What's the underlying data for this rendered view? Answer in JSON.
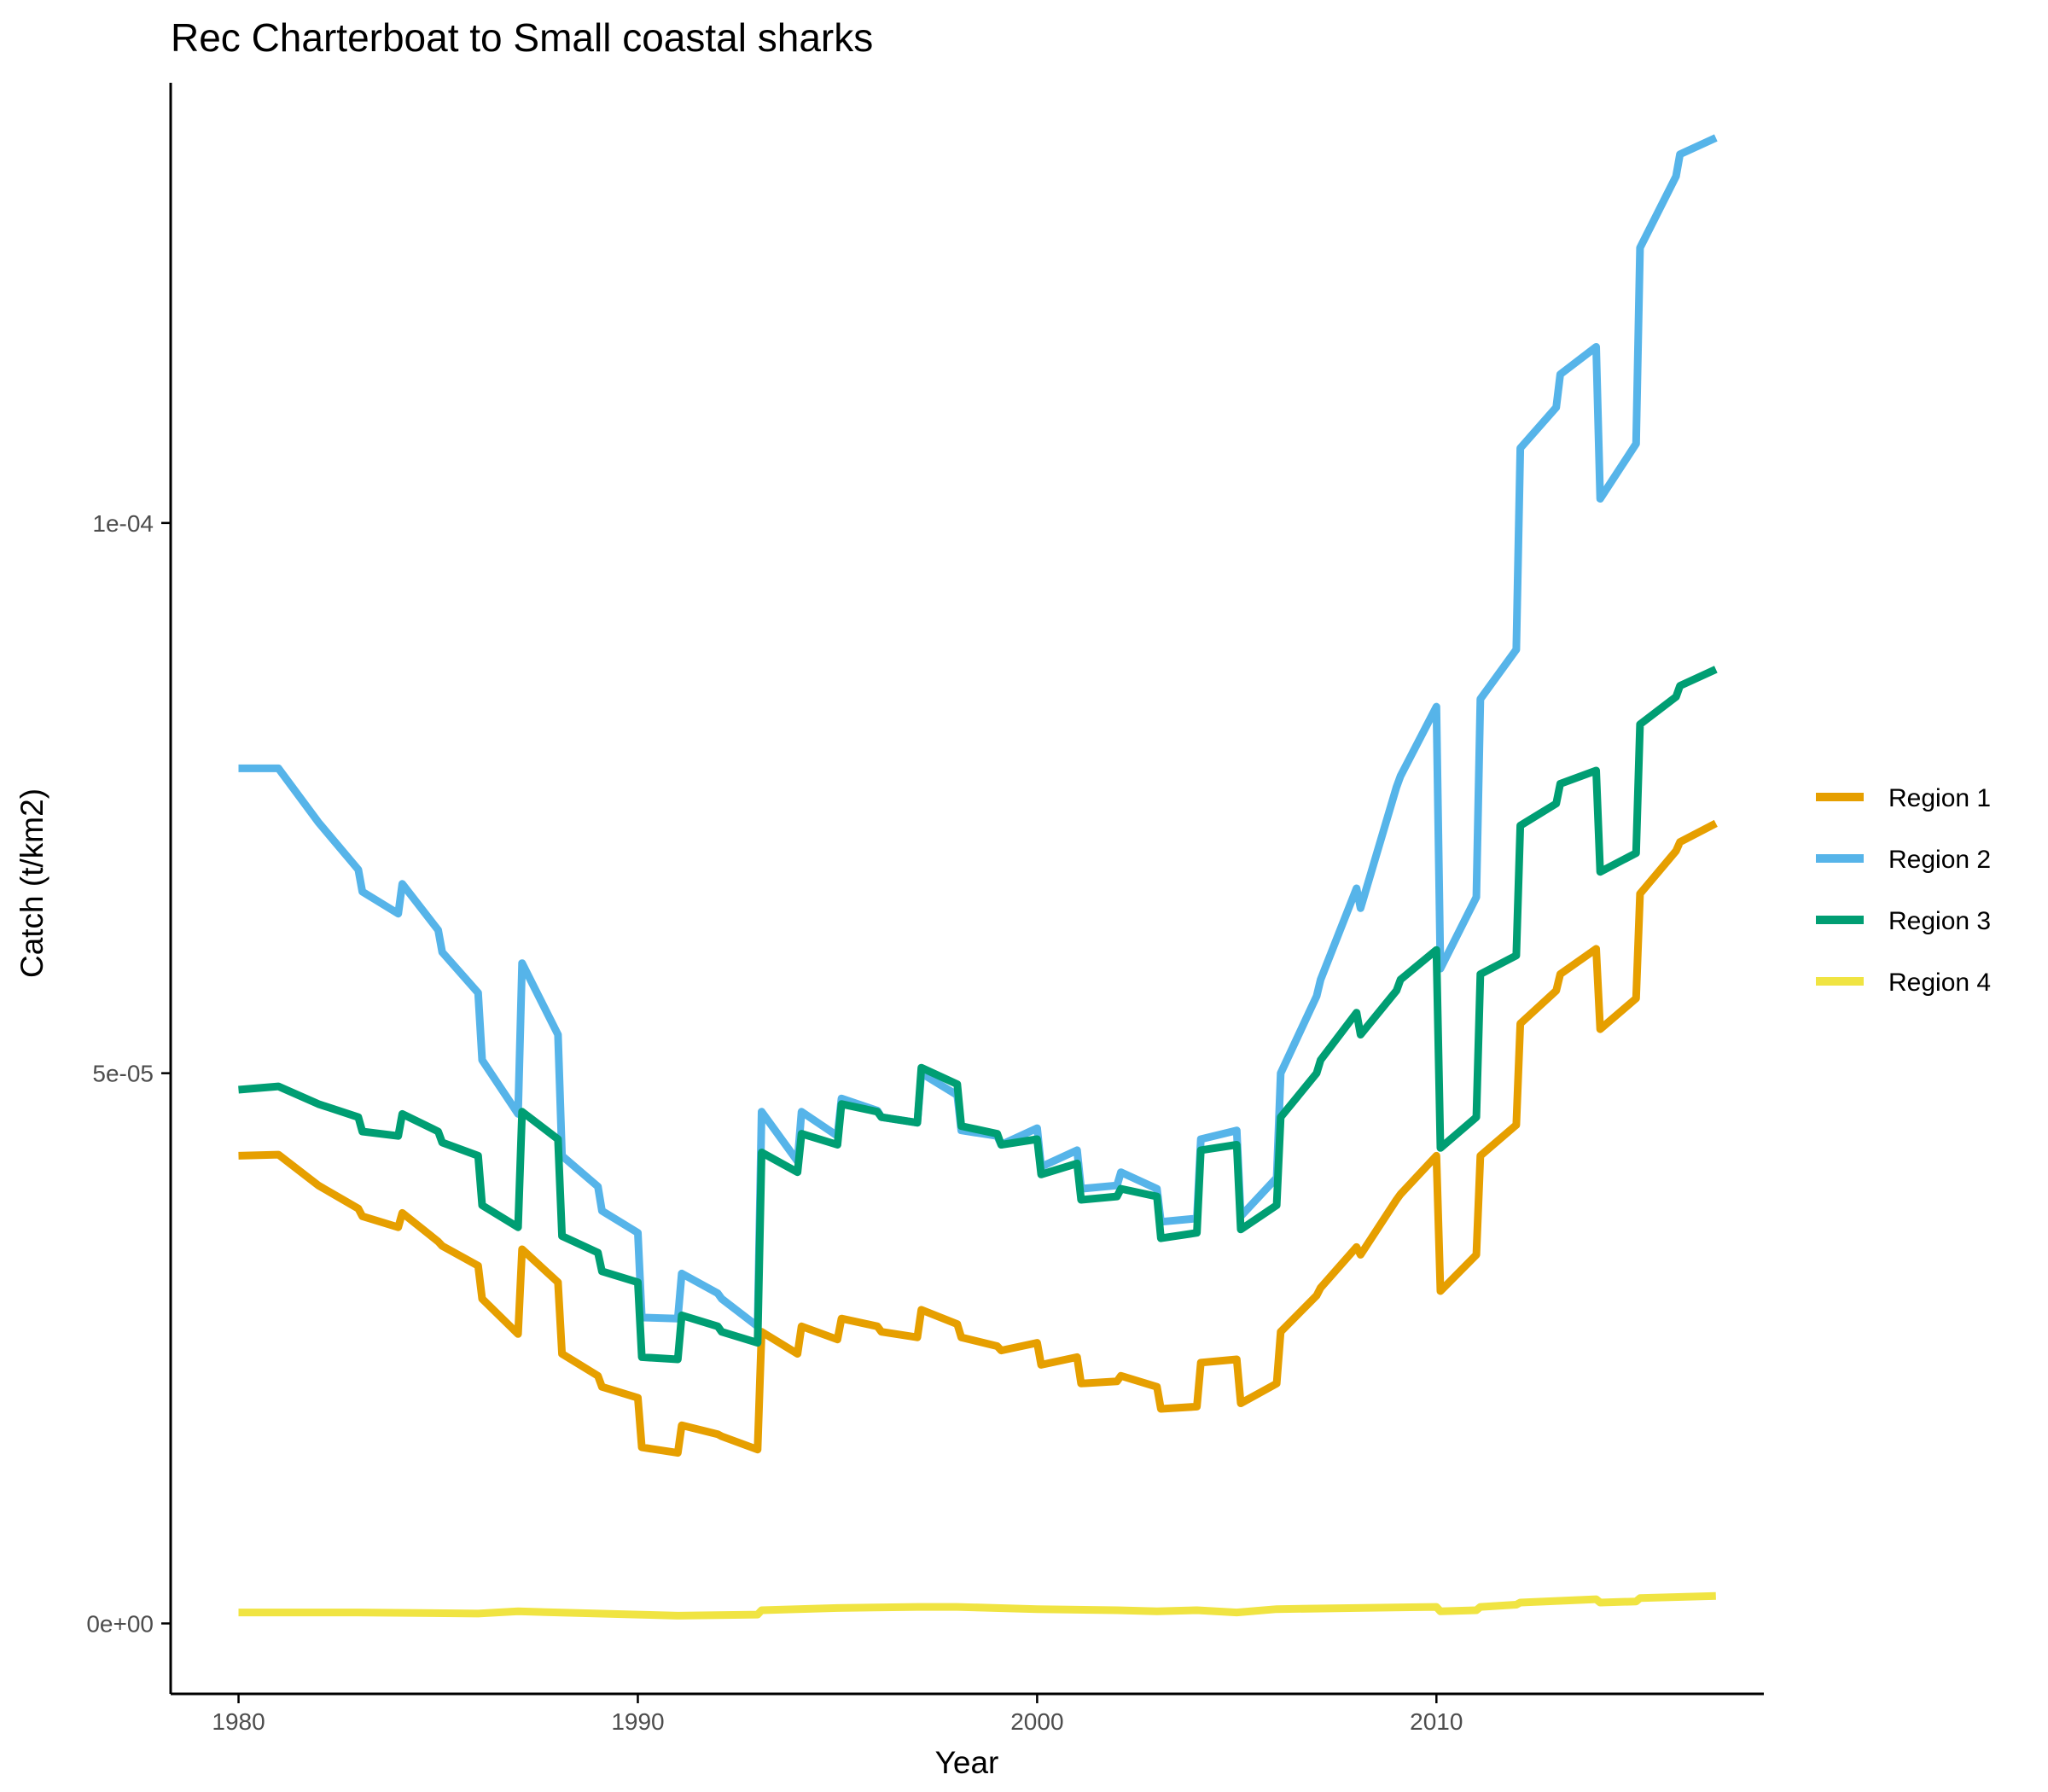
{
  "chart_data": {
    "type": "line",
    "title": "Rec Charterboat to Small coastal sharks",
    "xlabel": "Year",
    "ylabel": "Catch (t/km2)",
    "xlim": [
      1978.3,
      2018.2
    ],
    "ylim": [
      -6.4e-06,
      0.00014
    ],
    "x_ticks": [
      {
        "value": 1980,
        "label": "1980"
      },
      {
        "value": 1990,
        "label": "1990"
      },
      {
        "value": 2000,
        "label": "2000"
      },
      {
        "value": 2010,
        "label": "2010"
      }
    ],
    "y_ticks": [
      {
        "value": 0,
        "label": "0e+00"
      },
      {
        "value": 5e-05,
        "label": "5e-05"
      },
      {
        "value": 0.0001,
        "label": "1e-04"
      }
    ],
    "grid": false,
    "legend": "right",
    "series": [
      {
        "name": "Region 1",
        "color": "#E69F00",
        "points": [
          [
            1980,
            4.25e-05
          ],
          [
            1981,
            4.26e-05
          ],
          [
            1982,
            3.98e-05
          ],
          [
            1983,
            3.77e-05
          ],
          [
            1983.1,
            3.7e-05
          ],
          [
            1984,
            3.6e-05
          ],
          [
            1984.1,
            3.73e-05
          ],
          [
            1985,
            3.47e-05
          ],
          [
            1985.1,
            3.43e-05
          ],
          [
            1986,
            3.25e-05
          ],
          [
            1986.1,
            2.95e-05
          ],
          [
            1987,
            2.63e-05
          ],
          [
            1987.1,
            3.4e-05
          ],
          [
            1988,
            3.1e-05
          ],
          [
            1988.1,
            2.45e-05
          ],
          [
            1989,
            2.25e-05
          ],
          [
            1989.1,
            2.15e-05
          ],
          [
            1990,
            2.05e-05
          ],
          [
            1990.1,
            1.6e-05
          ],
          [
            1991,
            1.55e-05
          ],
          [
            1991.1,
            1.8e-05
          ],
          [
            1992,
            1.72e-05
          ],
          [
            1992.1,
            1.7e-05
          ],
          [
            1993,
            1.58e-05
          ],
          [
            1993.1,
            2.65e-05
          ],
          [
            1994,
            2.45e-05
          ],
          [
            1994.1,
            2.7e-05
          ],
          [
            1995,
            2.58e-05
          ],
          [
            1995.1,
            2.77e-05
          ],
          [
            1996,
            2.7e-05
          ],
          [
            1996.1,
            2.65e-05
          ],
          [
            1997,
            2.6e-05
          ],
          [
            1997.1,
            2.85e-05
          ],
          [
            1998,
            2.72e-05
          ],
          [
            1998.1,
            2.6e-05
          ],
          [
            1999,
            2.52e-05
          ],
          [
            1999.1,
            2.48e-05
          ],
          [
            2000,
            2.55e-05
          ],
          [
            2000.1,
            2.35e-05
          ],
          [
            2001,
            2.42e-05
          ],
          [
            2001.1,
            2.18e-05
          ],
          [
            2002,
            2.2e-05
          ],
          [
            2002.1,
            2.25e-05
          ],
          [
            2003,
            2.15e-05
          ],
          [
            2003.1,
            1.95e-05
          ],
          [
            2004,
            1.97e-05
          ],
          [
            2004.1,
            2.37e-05
          ],
          [
            2005,
            2.4e-05
          ],
          [
            2005.1,
            2e-05
          ],
          [
            2006,
            2.18e-05
          ],
          [
            2006.1,
            2.65e-05
          ],
          [
            2007,
            2.98e-05
          ],
          [
            2007.1,
            3.05e-05
          ],
          [
            2008,
            3.42e-05
          ],
          [
            2008.1,
            3.35e-05
          ],
          [
            2009,
            3.85e-05
          ],
          [
            2009.1,
            3.9e-05
          ],
          [
            2010,
            4.25e-05
          ],
          [
            2010.1,
            3.02e-05
          ],
          [
            2011,
            3.35e-05
          ],
          [
            2011.1,
            4.25e-05
          ],
          [
            2012,
            4.53e-05
          ],
          [
            2012.1,
            5.45e-05
          ],
          [
            2013,
            5.75e-05
          ],
          [
            2013.1,
            5.9e-05
          ],
          [
            2014,
            6.13e-05
          ],
          [
            2014.1,
            5.4e-05
          ],
          [
            2015,
            5.68e-05
          ],
          [
            2015.1,
            6.63e-05
          ],
          [
            2016,
            7.02e-05
          ],
          [
            2016.1,
            7.1e-05
          ],
          [
            2017,
            7.27e-05
          ]
        ]
      },
      {
        "name": "Region 2",
        "color": "#56B4E9",
        "points": [
          [
            1980,
            7.77e-05
          ],
          [
            1981,
            7.77e-05
          ],
          [
            1982,
            7.28e-05
          ],
          [
            1983,
            6.85e-05
          ],
          [
            1983.1,
            6.65e-05
          ],
          [
            1984,
            6.45e-05
          ],
          [
            1984.1,
            6.72e-05
          ],
          [
            1985,
            6.3e-05
          ],
          [
            1985.1,
            6.1e-05
          ],
          [
            1986,
            5.73e-05
          ],
          [
            1986.1,
            5.12e-05
          ],
          [
            1987,
            4.63e-05
          ],
          [
            1987.1,
            6e-05
          ],
          [
            1988,
            5.35e-05
          ],
          [
            1988.1,
            4.25e-05
          ],
          [
            1989,
            3.97e-05
          ],
          [
            1989.1,
            3.75e-05
          ],
          [
            1990,
            3.55e-05
          ],
          [
            1990.1,
            2.78e-05
          ],
          [
            1991,
            2.77e-05
          ],
          [
            1991.1,
            3.18e-05
          ],
          [
            1992,
            3e-05
          ],
          [
            1992.1,
            2.95e-05
          ],
          [
            1993,
            2.7e-05
          ],
          [
            1993.1,
            4.65e-05
          ],
          [
            1994,
            4.2e-05
          ],
          [
            1994.1,
            4.65e-05
          ],
          [
            1995,
            4.43e-05
          ],
          [
            1995.1,
            4.77e-05
          ],
          [
            1996,
            4.66e-05
          ],
          [
            1996.1,
            4.6e-05
          ],
          [
            1997,
            4.55e-05
          ],
          [
            1997.1,
            5e-05
          ],
          [
            1998,
            4.8e-05
          ],
          [
            1998.1,
            4.48e-05
          ],
          [
            1999,
            4.43e-05
          ],
          [
            1999.1,
            4.35e-05
          ],
          [
            2000,
            4.5e-05
          ],
          [
            2000.1,
            4.15e-05
          ],
          [
            2001,
            4.3e-05
          ],
          [
            2001.1,
            3.95e-05
          ],
          [
            2002,
            3.98e-05
          ],
          [
            2002.1,
            4.1e-05
          ],
          [
            2003,
            3.95e-05
          ],
          [
            2003.1,
            3.65e-05
          ],
          [
            2004,
            3.68e-05
          ],
          [
            2004.1,
            4.4e-05
          ],
          [
            2005,
            4.48e-05
          ],
          [
            2005.1,
            3.7e-05
          ],
          [
            2006,
            4.05e-05
          ],
          [
            2006.1,
            5e-05
          ],
          [
            2007,
            5.7e-05
          ],
          [
            2007.1,
            5.85e-05
          ],
          [
            2008,
            6.68e-05
          ],
          [
            2008.1,
            6.5e-05
          ],
          [
            2009,
            7.6e-05
          ],
          [
            2009.1,
            7.7e-05
          ],
          [
            2010,
            8.33e-05
          ],
          [
            2010.1,
            5.95e-05
          ],
          [
            2011,
            6.6e-05
          ],
          [
            2011.1,
            8.4e-05
          ],
          [
            2012,
            8.85e-05
          ],
          [
            2012.1,
            0.0001068
          ],
          [
            2013,
            0.0001105
          ],
          [
            2013.1,
            0.0001135
          ],
          [
            2014,
            0.000116
          ],
          [
            2014.1,
            0.0001022
          ],
          [
            2015,
            0.0001072
          ],
          [
            2015.1,
            0.000125
          ],
          [
            2016,
            0.0001315
          ],
          [
            2016.1,
            0.0001335
          ],
          [
            2017,
            0.000135
          ]
        ]
      },
      {
        "name": "Region 3",
        "color": "#009E73",
        "points": [
          [
            1980,
            4.85e-05
          ],
          [
            1981,
            4.88e-05
          ],
          [
            1982,
            4.72e-05
          ],
          [
            1983,
            4.6e-05
          ],
          [
            1983.1,
            4.47e-05
          ],
          [
            1984,
            4.43e-05
          ],
          [
            1984.1,
            4.63e-05
          ],
          [
            1985,
            4.47e-05
          ],
          [
            1985.1,
            4.37e-05
          ],
          [
            1986,
            4.25e-05
          ],
          [
            1986.1,
            3.8e-05
          ],
          [
            1987,
            3.6e-05
          ],
          [
            1987.1,
            4.65e-05
          ],
          [
            1988,
            4.4e-05
          ],
          [
            1988.1,
            3.52e-05
          ],
          [
            1989,
            3.37e-05
          ],
          [
            1989.1,
            3.2e-05
          ],
          [
            1990,
            3.1e-05
          ],
          [
            1990.1,
            2.42e-05
          ],
          [
            1991,
            2.4e-05
          ],
          [
            1991.1,
            2.8e-05
          ],
          [
            1992,
            2.7e-05
          ],
          [
            1992.1,
            2.65e-05
          ],
          [
            1993,
            2.55e-05
          ],
          [
            1993.1,
            4.28e-05
          ],
          [
            1994,
            4.1e-05
          ],
          [
            1994.1,
            4.45e-05
          ],
          [
            1995,
            4.35e-05
          ],
          [
            1995.1,
            4.72e-05
          ],
          [
            1996,
            4.65e-05
          ],
          [
            1996.1,
            4.6e-05
          ],
          [
            1997,
            4.55e-05
          ],
          [
            1997.1,
            5.05e-05
          ],
          [
            1998,
            4.9e-05
          ],
          [
            1998.1,
            4.52e-05
          ],
          [
            1999,
            4.45e-05
          ],
          [
            1999.1,
            4.35e-05
          ],
          [
            2000,
            4.4e-05
          ],
          [
            2000.1,
            4.08e-05
          ],
          [
            2001,
            4.18e-05
          ],
          [
            2001.1,
            3.85e-05
          ],
          [
            2002,
            3.88e-05
          ],
          [
            2002.1,
            3.95e-05
          ],
          [
            2003,
            3.88e-05
          ],
          [
            2003.1,
            3.5e-05
          ],
          [
            2004,
            3.55e-05
          ],
          [
            2004.1,
            4.3e-05
          ],
          [
            2005,
            4.35e-05
          ],
          [
            2005.1,
            3.58e-05
          ],
          [
            2006,
            3.8e-05
          ],
          [
            2006.1,
            4.6e-05
          ],
          [
            2007,
            5e-05
          ],
          [
            2007.1,
            5.12e-05
          ],
          [
            2008,
            5.55e-05
          ],
          [
            2008.1,
            5.35e-05
          ],
          [
            2009,
            5.75e-05
          ],
          [
            2009.1,
            5.85e-05
          ],
          [
            2010,
            6.12e-05
          ],
          [
            2010.1,
            4.32e-05
          ],
          [
            2011,
            4.6e-05
          ],
          [
            2011.1,
            5.9e-05
          ],
          [
            2012,
            6.07e-05
          ],
          [
            2012.1,
            7.25e-05
          ],
          [
            2013,
            7.45e-05
          ],
          [
            2013.1,
            7.63e-05
          ],
          [
            2014,
            7.75e-05
          ],
          [
            2014.1,
            6.83e-05
          ],
          [
            2015,
            7e-05
          ],
          [
            2015.1,
            8.17e-05
          ],
          [
            2016,
            8.42e-05
          ],
          [
            2016.1,
            8.52e-05
          ],
          [
            2017,
            8.67e-05
          ]
        ]
      },
      {
        "name": "Region 4",
        "color": "#F0E442",
        "points": [
          [
            1980,
            1e-06
          ],
          [
            1983,
            1e-06
          ],
          [
            1986,
            9e-07
          ],
          [
            1987,
            1.1e-06
          ],
          [
            1988,
            1e-06
          ],
          [
            1990,
            8e-07
          ],
          [
            1991,
            7e-07
          ],
          [
            1993,
            8e-07
          ],
          [
            1993.1,
            1.2e-06
          ],
          [
            1995,
            1.4e-06
          ],
          [
            1997,
            1.5e-06
          ],
          [
            1998,
            1.5e-06
          ],
          [
            2000,
            1.3e-06
          ],
          [
            2002,
            1.2e-06
          ],
          [
            2003,
            1.1e-06
          ],
          [
            2004,
            1.2e-06
          ],
          [
            2005,
            1e-06
          ],
          [
            2006,
            1.3e-06
          ],
          [
            2008,
            1.4e-06
          ],
          [
            2010,
            1.5e-06
          ],
          [
            2010.1,
            1.1e-06
          ],
          [
            2011,
            1.2e-06
          ],
          [
            2011.1,
            1.5e-06
          ],
          [
            2012,
            1.7e-06
          ],
          [
            2012.1,
            1.9e-06
          ],
          [
            2014,
            2.2e-06
          ],
          [
            2014.1,
            1.9e-06
          ],
          [
            2015,
            2e-06
          ],
          [
            2015.1,
            2.3e-06
          ],
          [
            2017,
            2.5e-06
          ]
        ]
      }
    ]
  }
}
